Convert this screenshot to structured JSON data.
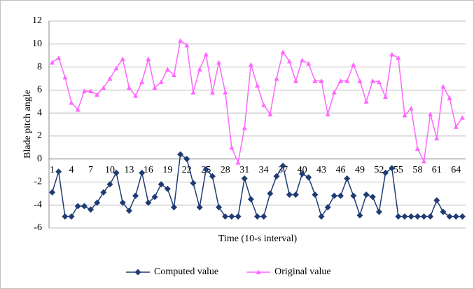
{
  "chart_data": {
    "type": "line",
    "x_label": "Time (10-s  interval)",
    "y_label": "Blade pitch angle",
    "categories": [
      1,
      null,
      null,
      4,
      null,
      null,
      7,
      null,
      null,
      10,
      null,
      null,
      13,
      null,
      null,
      16,
      null,
      null,
      19,
      null,
      null,
      22,
      null,
      null,
      25,
      null,
      null,
      28,
      null,
      null,
      31,
      null,
      null,
      34,
      null,
      null,
      37,
      null,
      null,
      40,
      null,
      null,
      43,
      null,
      null,
      46,
      null,
      null,
      49,
      null,
      null,
      52,
      null,
      null,
      55,
      null,
      null,
      58,
      null,
      null,
      61,
      null,
      null,
      64,
      null
    ],
    "series": [
      {
        "name": "Computed value",
        "color": "#1f3b73",
        "marker": "diamond",
        "values": [
          -2.9,
          -1.1,
          -5.0,
          -5.0,
          -4.1,
          -4.1,
          -4.4,
          -3.8,
          -2.9,
          -2.2,
          -1.2,
          -3.8,
          -4.5,
          -3.2,
          -1.2,
          -3.8,
          -3.3,
          -2.2,
          -2.6,
          -4.2,
          0.4,
          0.0,
          -2.1,
          -4.2,
          -0.9,
          -1.5,
          -4.2,
          -5.0,
          -5.0,
          -5.0,
          -1.7,
          -3.5,
          -5.0,
          -5.0,
          -3.0,
          -1.5,
          -0.6,
          -3.1,
          -3.1,
          -1.3,
          -1.6,
          -3.1,
          -5.0,
          -4.2,
          -3.2,
          -3.2,
          -1.7,
          -3.2,
          -4.9,
          -3.1,
          -3.3,
          -4.6,
          -1.2,
          -0.8,
          -5.0,
          -5.0,
          -5.0,
          -5.0,
          -5.0,
          -5.0,
          -3.6,
          -4.6,
          -5.0,
          -5.0,
          -5.0
        ]
      },
      {
        "name": "Original value",
        "color": "#ff66ff",
        "marker": "triangle",
        "values": [
          8.4,
          8.8,
          7.1,
          4.9,
          4.3,
          5.9,
          5.9,
          5.6,
          6.2,
          7.0,
          7.9,
          8.7,
          6.2,
          5.5,
          6.7,
          8.7,
          6.2,
          6.7,
          7.8,
          7.3,
          10.3,
          9.9,
          5.8,
          7.8,
          9.1,
          5.8,
          8.4,
          5.8,
          1.0,
          -0.3,
          2.7,
          8.2,
          6.4,
          4.7,
          3.9,
          7.0,
          9.3,
          8.5,
          6.8,
          8.6,
          8.3,
          6.8,
          6.8,
          3.9,
          5.8,
          6.8,
          6.8,
          8.2,
          6.8,
          5.0,
          6.8,
          6.7,
          5.4,
          9.1,
          8.8,
          3.8,
          4.4,
          0.9,
          -0.2,
          3.9,
          1.8,
          6.3,
          5.3,
          2.8,
          3.6
        ]
      }
    ],
    "ylim": [
      -6,
      12
    ],
    "yticks": [
      -6,
      -4,
      -2,
      0,
      2,
      4,
      6,
      8,
      10,
      12
    ],
    "grid": true,
    "legend": "bottom"
  }
}
